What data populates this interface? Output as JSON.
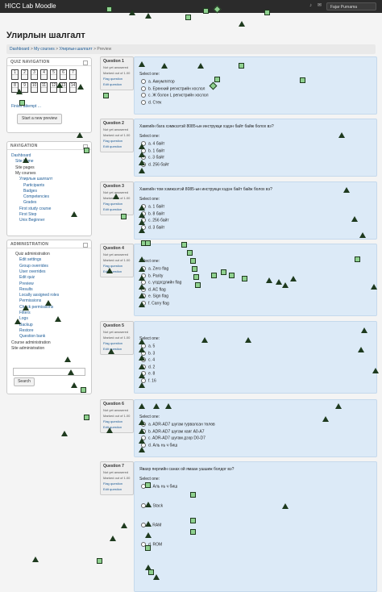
{
  "header": {
    "brand": "HICC Lab Moodle",
    "user_name": "Fajar Purnama"
  },
  "page_title": "Улирлын шалгалт",
  "breadcrumb": [
    "Dashboard",
    "My courses",
    "Улирлын шалгалт",
    "Preview"
  ],
  "quiz_nav": {
    "title": "QUIZ NAVIGATION",
    "numbers": [
      "1",
      "2",
      "3",
      "4",
      "5",
      "6",
      "7",
      "8",
      "9",
      "10",
      "11",
      "12",
      "13",
      "14"
    ],
    "finish": "Finish attempt ...",
    "start": "Start a new preview"
  },
  "navigation": {
    "title": "NAVIGATION",
    "items": [
      {
        "label": "Dashboard",
        "indent": 0,
        "link": true
      },
      {
        "label": "Site home",
        "indent": 1,
        "link": true
      },
      {
        "label": "Site pages",
        "indent": 1,
        "link": false
      },
      {
        "label": "My courses",
        "indent": 1,
        "link": false
      },
      {
        "label": "Улирлын шалгалт",
        "indent": 2,
        "link": true
      },
      {
        "label": "Participants",
        "indent": 3,
        "link": true
      },
      {
        "label": "Badges",
        "indent": 3,
        "link": true
      },
      {
        "label": "Competencies",
        "indent": 3,
        "link": true
      },
      {
        "label": "Grades",
        "indent": 3,
        "link": true
      },
      {
        "label": "First study course",
        "indent": 2,
        "link": true
      },
      {
        "label": "First Step",
        "indent": 2,
        "link": true
      },
      {
        "label": "Unix Beginner",
        "indent": 2,
        "link": true
      }
    ]
  },
  "administration": {
    "title": "ADMINISTRATION",
    "items": [
      {
        "label": "Quiz administration",
        "indent": 1,
        "link": false
      },
      {
        "label": "Edit settings",
        "indent": 2,
        "link": true
      },
      {
        "label": "Group overrides",
        "indent": 2,
        "link": true
      },
      {
        "label": "User overrides",
        "indent": 2,
        "link": true
      },
      {
        "label": "Edit quiz",
        "indent": 2,
        "link": true
      },
      {
        "label": "Preview",
        "indent": 2,
        "link": true
      },
      {
        "label": "Results",
        "indent": 2,
        "link": true
      },
      {
        "label": "Locally assigned roles",
        "indent": 2,
        "link": true
      },
      {
        "label": "Permissions",
        "indent": 2,
        "link": true
      },
      {
        "label": "Check permissions",
        "indent": 2,
        "link": true
      },
      {
        "label": "Filters",
        "indent": 2,
        "link": true
      },
      {
        "label": "Logs",
        "indent": 2,
        "link": true
      },
      {
        "label": "Backup",
        "indent": 2,
        "link": true
      },
      {
        "label": "Restore",
        "indent": 2,
        "link": true
      },
      {
        "label": "Question bank",
        "indent": 2,
        "link": true
      },
      {
        "label": "Course administration",
        "indent": 0,
        "link": false
      },
      {
        "label": "Site administration",
        "indent": 0,
        "link": false
      }
    ],
    "search_label": "Search"
  },
  "questions": [
    {
      "label": "Question",
      "number": "1",
      "status": "Not yet answered",
      "mark": "Marked out of 1.00",
      "flag": "Flag question",
      "edit": "Edit question",
      "text": "",
      "select_one": "Select one:",
      "options": [
        "a. Аккумлятор",
        "b. Ерөнхий регистрийн хослол",
        "c. Ж болон L регистрийн хослол",
        "d. Стек"
      ]
    },
    {
      "label": "Question",
      "number": "2",
      "status": "Not yet answered",
      "mark": "Marked out of 1.00",
      "flag": "Flag question",
      "edit": "Edit question",
      "text": "Хамгийн багa хэмжээтэй 8085-ын инструкци хэдэн байт байж болох вэ?",
      "select_one": "Select one:",
      "options": [
        "a. 4 байт",
        "b. 1 байт",
        "c. 3 байт",
        "d. 256 байт"
      ]
    },
    {
      "label": "Question",
      "number": "3",
      "status": "Not yet answered",
      "mark": "Marked out of 1.00",
      "flag": "Flag question",
      "edit": "Edit question",
      "text": "Хамгийн том хэмжээтэй 8085-ын инструкци хэдэн байт байж болох вэ?",
      "select_one": "Select one:",
      "options": [
        "a. 1 байт",
        "b. 8 байт",
        "c. 256 байт",
        "d. 3 байт"
      ]
    },
    {
      "label": "Question",
      "number": "4",
      "status": "Not yet answered",
      "mark": "Marked out of 1.00",
      "flag": "Flag question",
      "edit": "Edit question",
      "text": "",
      "select_one": "Select one:",
      "options": [
        "a. Zero flag",
        "b. Parity",
        "c. үлдэгдлийн flag",
        "d. AC flag",
        "e. Sign flag",
        "f. Carry flag"
      ]
    },
    {
      "label": "Question",
      "number": "5",
      "status": "Not yet answered",
      "mark": "Marked out of 1.00",
      "flag": "Flag question",
      "edit": "Edit question",
      "text": "",
      "select_one": "Select one:",
      "options": [
        "a. 5",
        "b. 3",
        "c. 4",
        "d. 2",
        "e. 8",
        "f. 16"
      ]
    },
    {
      "label": "Question",
      "number": "6",
      "status": "Not yet answered",
      "mark": "Marked out of 1.00",
      "flag": "Flag question",
      "edit": "Edit question",
      "text": "",
      "select_one": "Select one:",
      "options": [
        "a. ADR-AD7 шугам гурвалсан төлөв",
        "b. ADR-AD7 шугам хаяг A0-A7",
        "c. ADR-AD7 шугам дээр D0-D7",
        "d. Аль нь ч биш"
      ]
    },
    {
      "label": "Question",
      "number": "7",
      "status": "Not yet answered",
      "mark": "Marked out of 1.00",
      "flag": "Flag question",
      "edit": "Edit question",
      "text": "Явахр перлийн санах ой ямаан ушшиж болдог вэ?",
      "select_one": "Select one:",
      "options": [
        "a. Аль нь ч биш",
        "b. Stack",
        "c. RAM",
        "d. ROM"
      ]
    }
  ],
  "colors": {
    "accent": "#1a5a96",
    "question_bg": "#dceaf7",
    "marker": "#8fd18f",
    "marker_border": "#1e3a1e"
  }
}
